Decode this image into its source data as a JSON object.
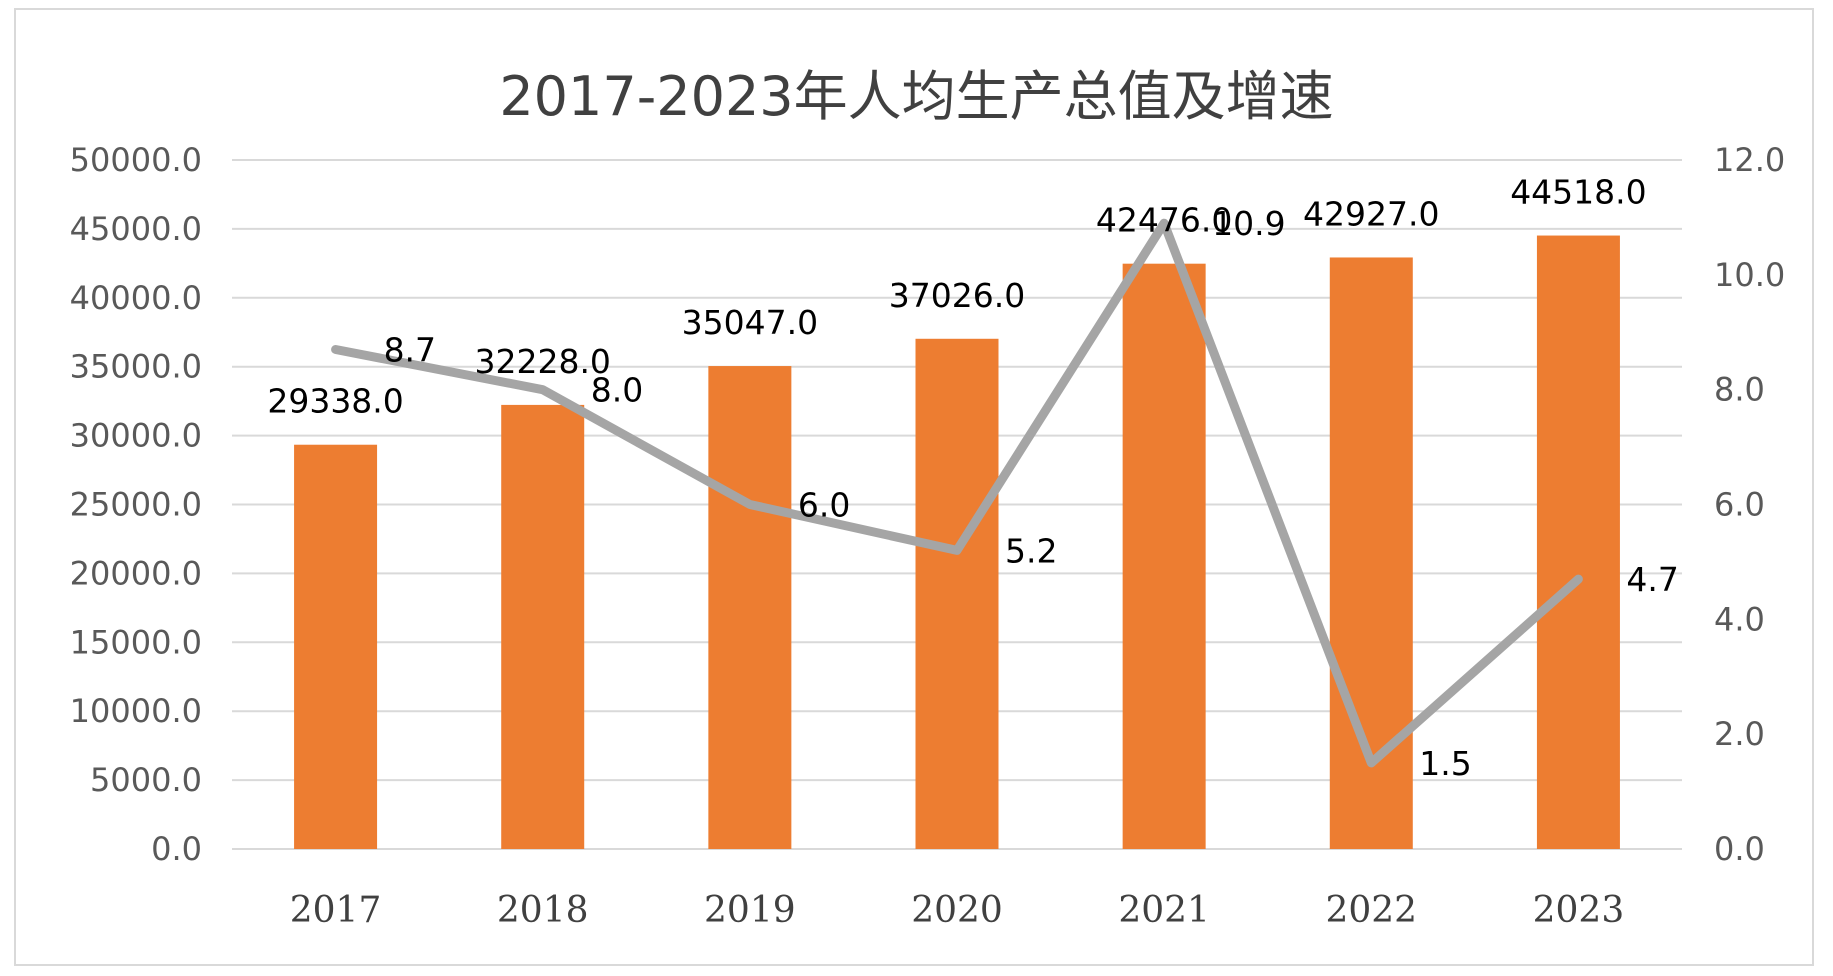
{
  "chart_data": {
    "type": "bar",
    "title": "2017-2023年人均生产总值及增速",
    "categories": [
      "2017",
      "2018",
      "2019",
      "2020",
      "2021",
      "2022",
      "2023"
    ],
    "series": [
      {
        "type": "bar",
        "axis": "left",
        "color": "#ED7D31",
        "values": [
          29338.0,
          32228.0,
          35047.0,
          37026.0,
          42476.0,
          42927.0,
          44518.0
        ],
        "labels": [
          "29338.0",
          "32228.0",
          "35047.0",
          "37026.0",
          "42476.0",
          "42927.0",
          "44518.0"
        ]
      },
      {
        "type": "line",
        "axis": "right",
        "color": "#A5A5A5",
        "values": [
          8.7,
          8.0,
          6.0,
          5.2,
          10.9,
          1.5,
          4.7
        ],
        "labels": [
          "8.7",
          "8.0",
          "6.0",
          "5.2",
          "10.9",
          "1.5",
          "4.7"
        ]
      }
    ],
    "y_left": {
      "min": 0,
      "max": 50000,
      "step": 5000,
      "ticks": [
        "0.0",
        "5000.0",
        "10000.0",
        "15000.0",
        "20000.0",
        "25000.0",
        "30000.0",
        "35000.0",
        "40000.0",
        "45000.0",
        "50000.0"
      ]
    },
    "y_right": {
      "min": 0,
      "max": 12,
      "step": 2,
      "ticks": [
        "0.0",
        "2.0",
        "4.0",
        "6.0",
        "8.0",
        "10.0",
        "12.0"
      ]
    },
    "grid": true,
    "legend": "none"
  }
}
